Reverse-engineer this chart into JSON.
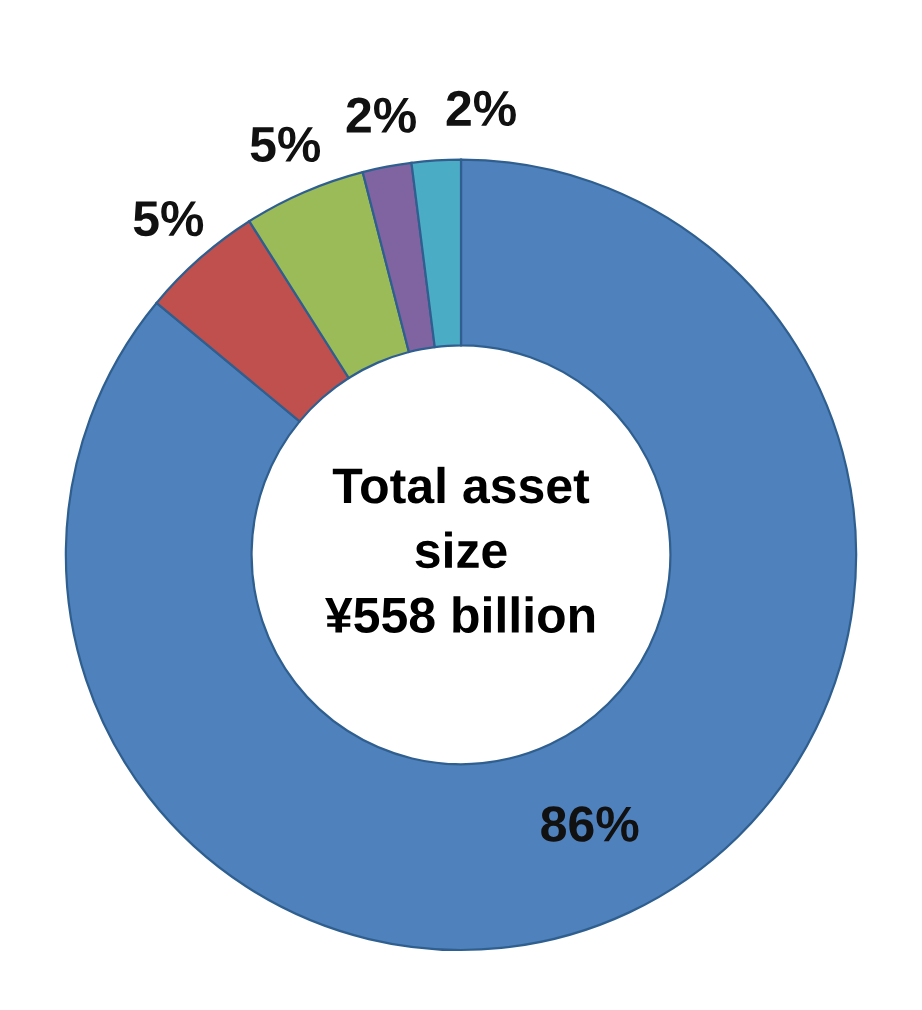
{
  "chart_data": {
    "type": "donut",
    "categories": [
      null,
      null,
      null,
      null,
      null
    ],
    "values": [
      86,
      5,
      5,
      2,
      2
    ],
    "colors": [
      "#4f81bd",
      "#c0504d",
      "#9bbb59",
      "#8064a2",
      "#4bacc6"
    ],
    "value_labels": [
      "86%",
      "5%",
      "5%",
      "2%",
      "2%"
    ],
    "annotations": [
      "Total asset\nsize\n¥558 billion"
    ],
    "legend": false
  }
}
